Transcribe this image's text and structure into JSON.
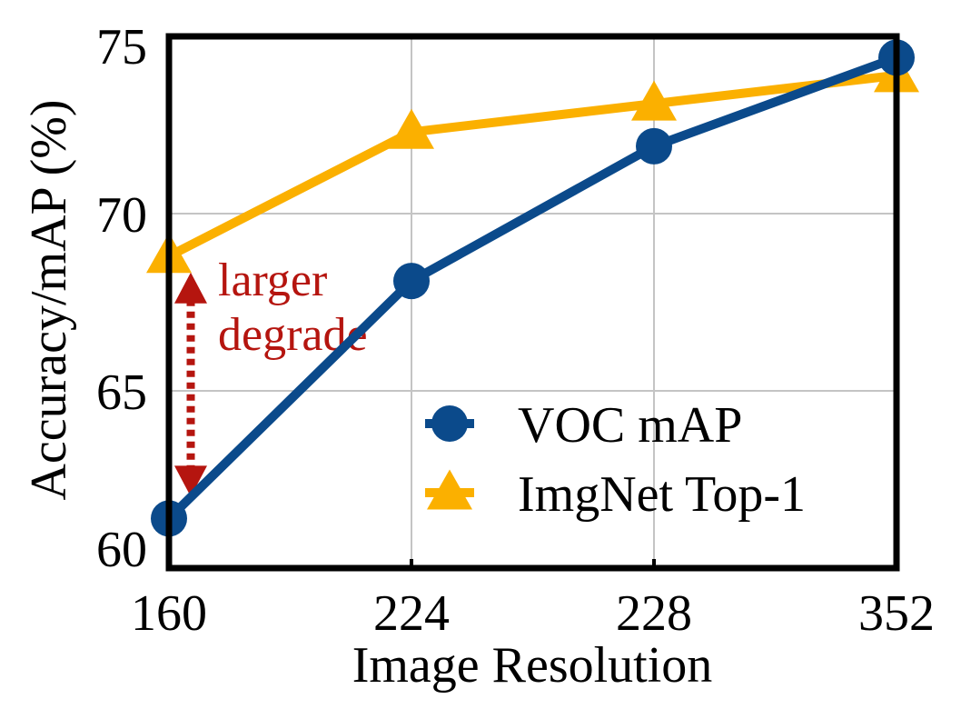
{
  "chart_data": {
    "type": "line",
    "title": "",
    "xlabel": "Image Resolution",
    "ylabel": "Accuracy/mAP (%)",
    "categories": [
      "160",
      "224",
      "228",
      "352"
    ],
    "ylim": [
      60,
      75
    ],
    "yticks": [
      60,
      65,
      70,
      75
    ],
    "grid": true,
    "legend_position": "bottom-right",
    "series": [
      {
        "name": "VOC mAP",
        "marker": "circle",
        "color": "#0b4a8b",
        "values": [
          61.4,
          68.1,
          71.9,
          74.4
        ]
      },
      {
        "name": "ImgNet Top-1",
        "marker": "triangle",
        "color": "#fbb000",
        "values": [
          68.8,
          72.3,
          73.1,
          73.9
        ]
      }
    ],
    "annotations": [
      {
        "text_lines": [
          "larger",
          "degrade"
        ],
        "color": "#b5150f",
        "category": "160",
        "from_series": "ImgNet Top-1",
        "to_series": "VOC mAP",
        "style": "dotted double-headed arrow"
      }
    ]
  }
}
